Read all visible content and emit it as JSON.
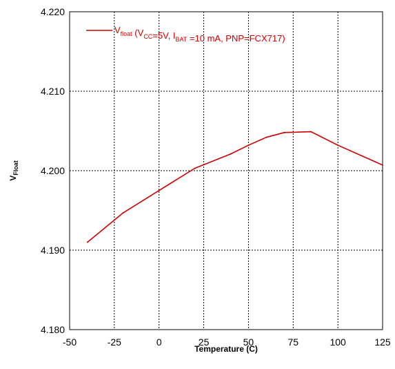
{
  "chart_data": {
    "type": "line",
    "title": "",
    "xlabel": "Temperature (C)",
    "ylabel": {
      "main": "V",
      "sub": "Float"
    },
    "xlim": [
      -50,
      125
    ],
    "ylim": [
      4.18,
      4.22
    ],
    "xticks": [
      -50,
      -25,
      0,
      25,
      50,
      75,
      100,
      125
    ],
    "xtick_labels": [
      "-50",
      "-25",
      "0",
      "25",
      "50",
      "75",
      "100",
      "125"
    ],
    "yticks": [
      4.18,
      4.19,
      4.2,
      4.21,
      4.22
    ],
    "ytick_labels": [
      "4.180",
      "4.190",
      "4.200",
      "4.210",
      "4.220"
    ],
    "grid": true,
    "legend_position": "top",
    "series": [
      {
        "name": "Vfloat (VCC=5V, IBAT =10 mA, PNP=FCX717)",
        "color": "#cc0000",
        "x": [
          -40,
          -20,
          0,
          20,
          40,
          50,
          60,
          70,
          85,
          100,
          125
        ],
        "y": [
          4.191,
          4.1947,
          4.1975,
          4.2003,
          4.2021,
          4.2032,
          4.2042,
          4.2048,
          4.2049,
          4.2032,
          4.2007
        ]
      }
    ],
    "legend_label": [
      {
        "text": "V",
        "sub": false
      },
      {
        "text": "float",
        "sub": true
      },
      {
        "text": " (V",
        "sub": false
      },
      {
        "text": "CC",
        "sub": true
      },
      {
        "text": "=5V, I",
        "sub": false
      },
      {
        "text": "BAT",
        "sub": true
      },
      {
        "text": " =10 mA, PNP=FCX717)",
        "sub": false
      }
    ]
  }
}
